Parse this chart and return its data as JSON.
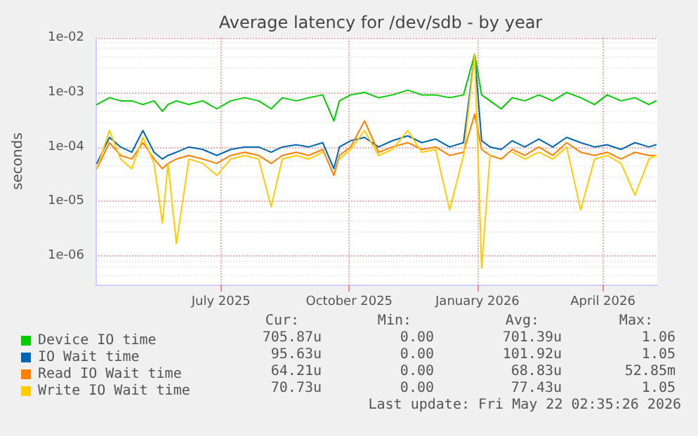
{
  "chart_data": {
    "type": "line",
    "title": "Average latency for /dev/sdb - by year",
    "ylabel": "seconds",
    "log": "y",
    "grid": true,
    "legend": "bottom",
    "marker": "none",
    "line_style": "solid",
    "x": [
      "2025-04-03",
      "2025-04-12",
      "2025-04-20",
      "2025-04-28",
      "2025-05-06",
      "2025-05-14",
      "2025-05-20",
      "2025-05-24",
      "2025-05-30",
      "2025-06-08",
      "2025-06-18",
      "2025-06-28",
      "2025-07-08",
      "2025-07-18",
      "2025-07-28",
      "2025-08-06",
      "2025-08-14",
      "2025-08-24",
      "2025-09-02",
      "2025-09-12",
      "2025-09-20",
      "2025-09-24",
      "2025-10-02",
      "2025-10-12",
      "2025-10-22",
      "2025-11-01",
      "2025-11-12",
      "2025-11-22",
      "2025-12-02",
      "2025-12-12",
      "2025-12-22",
      "2025-12-30",
      "2026-01-04",
      "2026-01-10",
      "2026-01-18",
      "2026-01-26",
      "2026-02-04",
      "2026-02-14",
      "2026-02-24",
      "2026-03-06",
      "2026-03-16",
      "2026-03-26",
      "2026-04-04",
      "2026-04-14",
      "2026-04-24",
      "2026-05-04",
      "2026-05-09"
    ],
    "xlim": [
      "2025-04-02",
      "2026-05-10"
    ],
    "xticks": [
      {
        "value": "2025-07-01",
        "label": "July 2025"
      },
      {
        "value": "2025-10-01",
        "label": "October 2025"
      },
      {
        "value": "2026-01-01",
        "label": "January 2026"
      },
      {
        "value": "2026-04-01",
        "label": "April 2026"
      }
    ],
    "ylim": [
      3e-07,
      0.01
    ],
    "yticks": [
      {
        "value": 1e-06,
        "label": "1e-06"
      },
      {
        "value": 1e-05,
        "label": "1e-05"
      },
      {
        "value": 0.0001,
        "label": "1e-04"
      },
      {
        "value": 0.001,
        "label": "1e-03"
      },
      {
        "value": 0.01,
        "label": "1e-02"
      }
    ],
    "series": [
      {
        "name": "Device IO time",
        "color": "#00cc00",
        "values": [
          0.0006,
          0.0008,
          0.0007,
          0.0007,
          0.0006,
          0.0007,
          0.00045,
          0.0006,
          0.0007,
          0.0006,
          0.0007,
          0.0005,
          0.0007,
          0.0008,
          0.0007,
          0.0005,
          0.0008,
          0.0007,
          0.0008,
          0.0009,
          0.0003,
          0.0007,
          0.0009,
          0.001,
          0.0008,
          0.0009,
          0.0011,
          0.0009,
          0.0009,
          0.0008,
          0.0009,
          0.005,
          0.0009,
          0.0007,
          0.0005,
          0.0008,
          0.0007,
          0.0009,
          0.0007,
          0.001,
          0.0008,
          0.0006,
          0.0009,
          0.0007,
          0.0008,
          0.0006,
          0.0007
        ]
      },
      {
        "name": "IO Wait time",
        "color": "#0066b3",
        "values": [
          5e-05,
          0.00015,
          0.0001,
          8e-05,
          0.0002,
          8e-05,
          6e-05,
          7e-05,
          8e-05,
          0.0001,
          9e-05,
          7e-05,
          9e-05,
          0.0001,
          0.0001,
          8e-05,
          0.0001,
          0.00011,
          0.0001,
          0.00012,
          4e-05,
          0.0001,
          0.00013,
          0.00015,
          0.0001,
          0.00013,
          0.00016,
          0.00012,
          0.00014,
          0.0001,
          0.00012,
          0.005,
          0.00013,
          0.0001,
          9e-05,
          0.00013,
          0.0001,
          0.00014,
          0.0001,
          0.00015,
          0.00012,
          0.0001,
          0.00011,
          9e-05,
          0.00012,
          0.0001,
          0.00011
        ]
      },
      {
        "name": "Read IO Wait time",
        "color": "#ff8000",
        "values": [
          4e-05,
          0.00012,
          7e-05,
          6e-05,
          0.00012,
          6e-05,
          4e-05,
          5e-05,
          6e-05,
          7e-05,
          6e-05,
          5e-05,
          7e-05,
          8e-05,
          7e-05,
          5e-05,
          7e-05,
          8e-05,
          7e-05,
          9e-05,
          3e-05,
          7e-05,
          0.0001,
          0.0003,
          8e-05,
          0.0001,
          0.00012,
          9e-05,
          0.0001,
          7e-05,
          8e-05,
          0.0004,
          9e-05,
          7e-05,
          6e-05,
          9e-05,
          7e-05,
          0.0001,
          7e-05,
          0.00012,
          8e-05,
          7e-05,
          8e-05,
          6e-05,
          8e-05,
          7e-05,
          7e-05
        ]
      },
      {
        "name": "Write IO Wait time",
        "color": "#ffcc00",
        "values": [
          4e-05,
          0.0002,
          6e-05,
          4e-05,
          0.00015,
          5e-05,
          4e-06,
          5e-05,
          1.7e-06,
          6e-05,
          5e-05,
          3e-05,
          6e-05,
          7e-05,
          6e-05,
          8e-06,
          6e-05,
          7e-05,
          6e-05,
          8e-05,
          null,
          6e-05,
          9e-05,
          0.0002,
          7e-05,
          9e-05,
          0.0002,
          8e-05,
          9e-05,
          7e-06,
          7e-05,
          0.005,
          6e-07,
          7e-05,
          null,
          8e-05,
          6e-05,
          8e-05,
          6e-05,
          0.0001,
          7e-06,
          6e-05,
          7e-05,
          5e-05,
          1.3e-05,
          6e-05,
          7e-05
        ]
      }
    ],
    "annotations": [
      "Cur:",
      "Min:",
      "Avg:",
      "Max:",
      "705.87u",
      "0.00",
      "701.39u",
      "1.06",
      "95.63u",
      "0.00",
      "101.92u",
      "1.05",
      "64.21u",
      "0.00",
      "68.83u",
      "52.85m",
      "70.73u",
      "0.00",
      "77.43u",
      "1.05",
      "Last update: Fri May 22 02:35:26 2026"
    ]
  }
}
